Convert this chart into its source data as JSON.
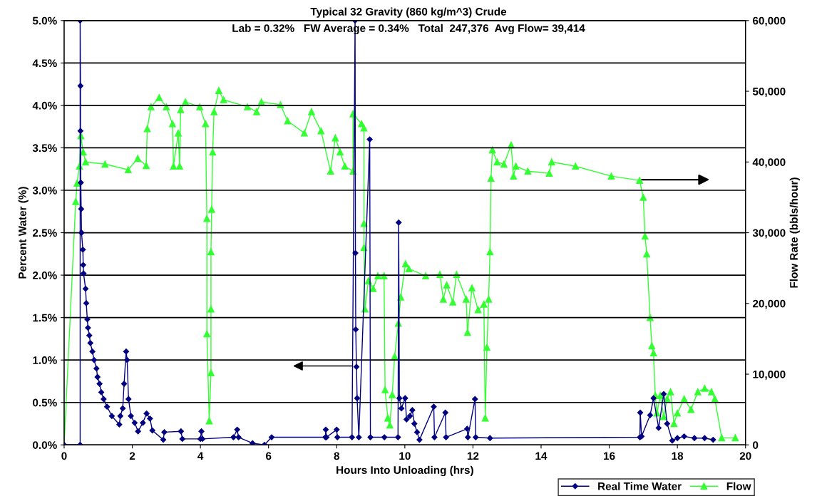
{
  "chart_data": {
    "type": "line",
    "title": "Typical 32 Gravity (860 kg/m^3) Crude",
    "subtitle": "Lab = 0.32%   FW Average = 0.34%   Total  247,376  Avg Flow= 39,414",
    "xlabel": "Hours Into Unloading (hrs)",
    "ylabel": "Percent Water (%)",
    "y2label": "Flow Rate (bbls/hour)",
    "xlim": [
      0,
      20
    ],
    "xticks": [
      0,
      2,
      4,
      6,
      8,
      10,
      12,
      14,
      16,
      18,
      20
    ],
    "ylim": [
      0,
      5
    ],
    "yticks": [
      {
        "value": 0,
        "label": "0.0%"
      },
      {
        "value": 0.5,
        "label": "0.5%"
      },
      {
        "value": 1,
        "label": "1.0%"
      },
      {
        "value": 1.5,
        "label": "1.5%"
      },
      {
        "value": 2,
        "label": "2.0%"
      },
      {
        "value": 2.5,
        "label": "2.5%"
      },
      {
        "value": 3,
        "label": "3.0%"
      },
      {
        "value": 3.5,
        "label": "3.5%"
      },
      {
        "value": 4,
        "label": "4.0%"
      },
      {
        "value": 4.5,
        "label": "4.5%"
      },
      {
        "value": 5,
        "label": "5.0%"
      }
    ],
    "y2lim": [
      0,
      60000
    ],
    "y2ticks": [
      {
        "value": 0,
        "label": "0"
      },
      {
        "value": 10000,
        "label": "10,000"
      },
      {
        "value": 20000,
        "label": "20,000"
      },
      {
        "value": 30000,
        "label": "30,000"
      },
      {
        "value": 40000,
        "label": "40,000"
      },
      {
        "value": 50000,
        "label": "50,000"
      },
      {
        "value": 60000,
        "label": "60,000"
      }
    ],
    "grid": "y",
    "legend": "bottom right",
    "series": [
      {
        "name": "Real Time Water",
        "color": "#000080",
        "marker": "diamond",
        "x": [
          0,
          0.47,
          0.47,
          0.48,
          0.48,
          0.49,
          0.5,
          0.51,
          0.55,
          0.56,
          0.57,
          0.63,
          0.65,
          0.68,
          0.7,
          0.74,
          0.77,
          0.83,
          0.88,
          0.95,
          0.98,
          1.04,
          1.09,
          1.16,
          1.26,
          1.4,
          1.62,
          1.65,
          1.72,
          1.76,
          1.82,
          1.85,
          1.89,
          1.96,
          2.07,
          2.17,
          2.31,
          2.42,
          2.52,
          2.59,
          2.91,
          2.94,
          3.43,
          3.47,
          4.0,
          4.03,
          4.06,
          4.97,
          5.08,
          5.12,
          5.53,
          5.88,
          6.09,
          7.67,
          7.68,
          7.7,
          8.0,
          8.02,
          8.45,
          8.54,
          8.55,
          8.56,
          8.58,
          8.6,
          8.65,
          8.97,
          8.99,
          9.4,
          9.8,
          9.82,
          9.84,
          9.9,
          10.01,
          10.05,
          10.15,
          10.22,
          10.28,
          10.36,
          10.43,
          10.85,
          10.87,
          11.19,
          11.21,
          11.83,
          11.85,
          12.06,
          12.08,
          12.5,
          16.9,
          16.91,
          16.95,
          17.2,
          17.3,
          17.45,
          17.6,
          17.7,
          17.85,
          18.0,
          18.2,
          18.5,
          18.8,
          19.05
        ],
        "values": [
          0,
          0,
          5.0,
          4.23,
          3.7,
          3.09,
          2.78,
          2.5,
          2.3,
          2.12,
          2.02,
          1.84,
          1.67,
          1.48,
          1.38,
          1.29,
          1.2,
          1.1,
          1.0,
          0.9,
          0.8,
          0.72,
          0.62,
          0.54,
          0.45,
          0.34,
          0.24,
          0.34,
          0.43,
          0.72,
          1.1,
          1.0,
          0.54,
          0.34,
          0.26,
          0.16,
          0.26,
          0.37,
          0.31,
          0.17,
          0.06,
          0.15,
          0.16,
          0.07,
          0.07,
          0.16,
          0.07,
          0.09,
          0.18,
          0.09,
          0.02,
          0.0,
          0.09,
          0.09,
          0.18,
          0.09,
          0.18,
          0.09,
          0.09,
          5.0,
          2.26,
          1.36,
          0.92,
          0.55,
          0.09,
          3.6,
          0.09,
          0.09,
          0.09,
          2.62,
          0.55,
          0.43,
          0.55,
          0.3,
          0.34,
          0.41,
          0.25,
          0.15,
          0.06,
          0.45,
          0.09,
          0.38,
          0.09,
          0.19,
          0.09,
          0.54,
          0.09,
          0.08,
          0.09,
          0.38,
          0.1,
          0.35,
          0.55,
          0.2,
          0.6,
          0.25,
          0.05,
          0.08,
          0.1,
          0.08,
          0.08,
          0.06
        ]
      },
      {
        "name": "Flow",
        "color": "#33ff33",
        "marker": "triangle",
        "axis": "y2",
        "x": [
          0,
          0.34,
          0.38,
          0.45,
          0.49,
          0.56,
          0.63,
          1.2,
          1.88,
          2.16,
          2.41,
          2.44,
          2.55,
          2.79,
          3.0,
          3.18,
          3.21,
          3.35,
          3.39,
          3.42,
          3.56,
          3.98,
          4.15,
          4.19,
          4.19,
          4.26,
          4.31,
          4.31,
          4.31,
          4.33,
          4.36,
          4.4,
          4.54,
          4.68,
          5.38,
          5.65,
          5.79,
          6.35,
          6.56,
          7.05,
          7.26,
          7.54,
          7.82,
          7.96,
          8.1,
          8.24,
          8.48,
          8.48,
          8.73,
          8.8,
          8.8,
          8.8,
          8.83,
          8.93,
          9.07,
          9.21,
          9.39,
          9.42,
          9.5,
          9.56,
          9.63,
          9.7,
          9.81,
          9.88,
          10.02,
          10.12,
          10.61,
          11.03,
          11.13,
          11.23,
          11.41,
          11.52,
          11.8,
          11.84,
          11.97,
          12.15,
          12.32,
          12.36,
          12.41,
          12.46,
          12.5,
          12.53,
          12.57,
          12.71,
          12.91,
          13.12,
          13.19,
          13.26,
          13.61,
          14.24,
          14.31,
          15.01,
          16.06,
          16.89,
          17.0,
          17.05,
          17.1,
          17.2,
          17.25,
          17.3,
          17.35,
          17.4,
          17.5,
          17.6,
          17.7,
          17.8,
          17.9,
          18.0,
          18.2,
          18.4,
          18.6,
          18.8,
          19.0,
          19.1,
          19.3,
          19.7
        ],
        "values": [
          0,
          34400,
          37000,
          39400,
          43700,
          41400,
          40000,
          39700,
          38900,
          40500,
          39500,
          44700,
          47800,
          49100,
          47800,
          45400,
          39400,
          44100,
          39400,
          47400,
          48500,
          47800,
          45400,
          32000,
          15700,
          3400,
          10200,
          19200,
          27300,
          33300,
          41400,
          47100,
          50100,
          48800,
          47800,
          47100,
          48500,
          48100,
          45800,
          44100,
          47100,
          44400,
          38700,
          43400,
          41400,
          39400,
          38700,
          46800,
          45400,
          44800,
          31300,
          27900,
          19200,
          23200,
          22100,
          23900,
          23900,
          7800,
          3800,
          2800,
          7100,
          12500,
          17200,
          20900,
          25600,
          24900,
          23900,
          24100,
          20600,
          22600,
          20200,
          24100,
          20600,
          15900,
          22200,
          19100,
          19900,
          3800,
          13800,
          20600,
          27300,
          37700,
          41700,
          40000,
          39700,
          42400,
          38000,
          39400,
          38700,
          38400,
          40000,
          39400,
          38000,
          37400,
          35000,
          29500,
          27000,
          18000,
          14000,
          13000,
          7000,
          4500,
          7000,
          4000,
          6500,
          7500,
          3000,
          4500,
          6500,
          5000,
          7500,
          8000,
          7500,
          6500,
          1000,
          1000
        ]
      }
    ]
  }
}
